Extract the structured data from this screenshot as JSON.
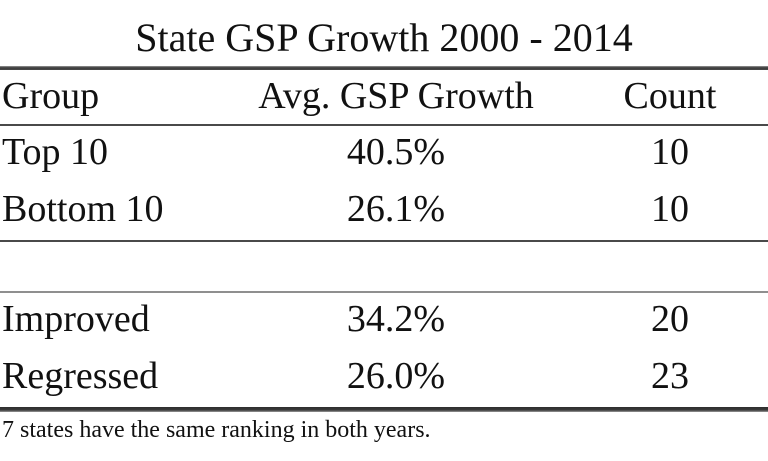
{
  "title": "State GSP Growth 2000 - 2014",
  "table": {
    "header": {
      "group": "Group",
      "growth": "Avg. GSP Growth",
      "count": "Count"
    },
    "rows": [
      {
        "group": "Top 10",
        "growth": "40.5%",
        "count": "10"
      },
      {
        "group": "Bottom 10",
        "growth": "26.1%",
        "count": "10"
      },
      {
        "group": "Improved",
        "growth": "34.2%",
        "count": "20"
      },
      {
        "group": "Regressed",
        "growth": "26.0%",
        "count": "23"
      }
    ]
  },
  "footnote": "7 states have the same ranking in both years.",
  "colors": {
    "background": "#ffffff",
    "text": "#111111",
    "rule_dark": "#3a3a3a",
    "rule_light": "#8f8f8f"
  },
  "chart_data": {
    "type": "table",
    "title": "State GSP Growth 2000 - 2014",
    "columns": [
      "Group",
      "Avg. GSP Growth",
      "Count"
    ],
    "rows": [
      {
        "group": "Top 10",
        "avg_gsp_growth_pct": 40.5,
        "count": 10
      },
      {
        "group": "Bottom 10",
        "avg_gsp_growth_pct": 26.1,
        "count": 10
      },
      {
        "group": "Improved",
        "avg_gsp_growth_pct": 34.2,
        "count": 20
      },
      {
        "group": "Regressed",
        "avg_gsp_growth_pct": 26.0,
        "count": 23
      }
    ],
    "sections": [
      [
        "Top 10",
        "Bottom 10"
      ],
      [
        "Improved",
        "Regressed"
      ]
    ],
    "footnote": "7 states have the same ranking in both years.",
    "layout_hints": {
      "column_alignments": [
        "left",
        "center",
        "center"
      ],
      "heavy_rule_top_and_bottom": true,
      "blank_separator_between_sections": true
    }
  }
}
